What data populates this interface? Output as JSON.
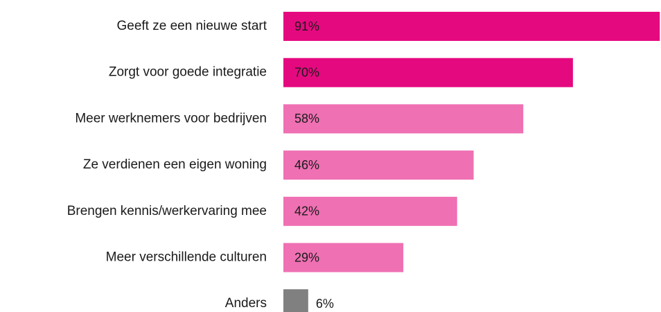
{
  "chart_data": {
    "type": "barh",
    "categories": [
      "Geeft ze een nieuwe start",
      "Zorgt voor goede integratie",
      "Meer werknemers voor bedrijven",
      "Ze verdienen een eigen woning",
      "Brengen kennis/werkervaring mee",
      "Meer verschillende culturen",
      "Anders"
    ],
    "values": [
      91,
      70,
      58,
      46,
      42,
      29,
      6
    ],
    "value_labels": [
      "91%",
      "70%",
      "58%",
      "46%",
      "42%",
      "29%",
      "6%"
    ],
    "colors": [
      "#e5097f",
      "#e5097f",
      "#ef70b3",
      "#ef70b3",
      "#ef70b3",
      "#ef70b3",
      "#808080"
    ]
  }
}
